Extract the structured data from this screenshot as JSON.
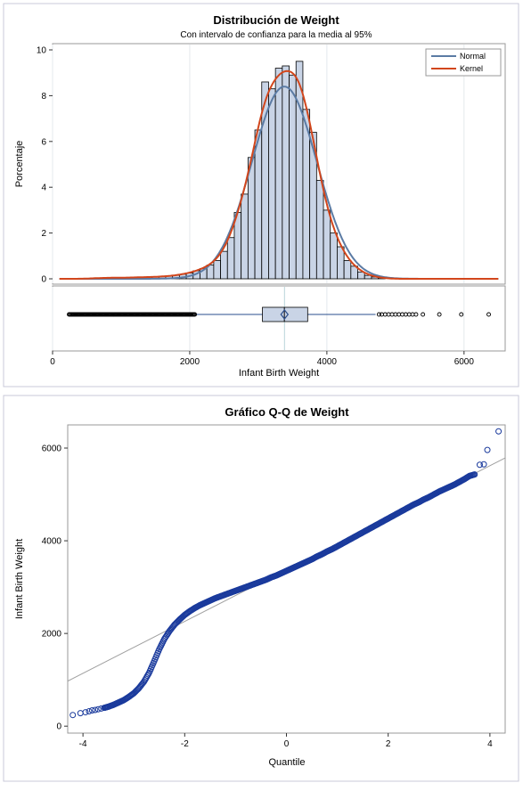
{
  "colors": {
    "bar_fill": "#c9d4e6",
    "bar_stroke": "#000000",
    "normal": "#5b7ba4",
    "kernel": "#d2461c",
    "box_fill": "#c9d4e6",
    "box_stroke": "#2a4d8c",
    "qq_marker": "#1a3a9c",
    "ref_line": "#a0a0a0"
  },
  "chart_data": [
    {
      "type": "histogram",
      "title": "Distribución de Weight",
      "subtitle": "Con intervalo de confianza para la media al 95%",
      "xlabel": "Infant Birth Weight",
      "ylabel": "Porcentaje",
      "xlim": [
        0,
        6600
      ],
      "ylim": [
        0,
        10
      ],
      "xticks": [
        0,
        2000,
        4000,
        6000
      ],
      "yticks": [
        0,
        2,
        4,
        6,
        8,
        10
      ],
      "bin_width": 100,
      "bins": [
        {
          "x": 600,
          "y": 0.03
        },
        {
          "x": 700,
          "y": 0.04
        },
        {
          "x": 800,
          "y": 0.04
        },
        {
          "x": 900,
          "y": 0.05
        },
        {
          "x": 1000,
          "y": 0.05
        },
        {
          "x": 1100,
          "y": 0.05
        },
        {
          "x": 1200,
          "y": 0.06
        },
        {
          "x": 1300,
          "y": 0.07
        },
        {
          "x": 1400,
          "y": 0.08
        },
        {
          "x": 1500,
          "y": 0.08
        },
        {
          "x": 1600,
          "y": 0.1
        },
        {
          "x": 1700,
          "y": 0.12
        },
        {
          "x": 1800,
          "y": 0.15
        },
        {
          "x": 1900,
          "y": 0.2
        },
        {
          "x": 2000,
          "y": 0.25
        },
        {
          "x": 2100,
          "y": 0.35
        },
        {
          "x": 2200,
          "y": 0.45
        },
        {
          "x": 2300,
          "y": 0.6
        },
        {
          "x": 2400,
          "y": 0.8
        },
        {
          "x": 2500,
          "y": 1.2
        },
        {
          "x": 2600,
          "y": 1.8
        },
        {
          "x": 2700,
          "y": 2.9
        },
        {
          "x": 2800,
          "y": 3.7
        },
        {
          "x": 2900,
          "y": 5.3
        },
        {
          "x": 3000,
          "y": 6.5
        },
        {
          "x": 3100,
          "y": 8.6
        },
        {
          "x": 3200,
          "y": 8.3
        },
        {
          "x": 3300,
          "y": 9.2
        },
        {
          "x": 3400,
          "y": 9.3
        },
        {
          "x": 3500,
          "y": 8.9
        },
        {
          "x": 3600,
          "y": 9.5
        },
        {
          "x": 3700,
          "y": 7.4
        },
        {
          "x": 3800,
          "y": 6.4
        },
        {
          "x": 3900,
          "y": 4.3
        },
        {
          "x": 4000,
          "y": 3.0
        },
        {
          "x": 4100,
          "y": 2.0
        },
        {
          "x": 4200,
          "y": 1.4
        },
        {
          "x": 4300,
          "y": 0.8
        },
        {
          "x": 4400,
          "y": 0.55
        },
        {
          "x": 4500,
          "y": 0.3
        },
        {
          "x": 4600,
          "y": 0.15
        },
        {
          "x": 4700,
          "y": 0.08
        },
        {
          "x": 4800,
          "y": 0.04
        }
      ],
      "series": [
        {
          "name": "Normal",
          "mean": 3380,
          "sd": 475
        },
        {
          "name": "Kernel"
        }
      ],
      "legend": "top-right",
      "boxplot": {
        "q1": 3060,
        "median": 3380,
        "q3": 3720,
        "mean": 3382,
        "whisker_low": 2080,
        "whisker_high": 4710,
        "outliers_low_range": [
          240,
          2080
        ],
        "outliers_high": [
          4760,
          4800,
          4850,
          4900,
          4950,
          5000,
          5050,
          5100,
          5150,
          5200,
          5250,
          5300,
          5400,
          5640,
          5960,
          6360
        ]
      }
    },
    {
      "type": "scatter",
      "title": "Gráfico Q-Q de Weight",
      "xlabel": "Quantile",
      "ylabel": "Infant Birth Weight",
      "xlim": [
        -4.3,
        4.3
      ],
      "ylim": [
        -150,
        6500
      ],
      "xticks": [
        -4,
        -2,
        0,
        2,
        4
      ],
      "yticks": [
        0,
        2000,
        4000,
        6000
      ],
      "reference_line": {
        "intercept": 3380,
        "slope": 560
      },
      "points": [
        [
          -4.2,
          240
        ],
        [
          -4.05,
          280
        ],
        [
          -3.95,
          300
        ],
        [
          -3.88,
          320
        ],
        [
          -3.82,
          340
        ],
        [
          -3.76,
          350
        ],
        [
          -3.7,
          365
        ],
        [
          -3.64,
          380
        ],
        [
          -3.58,
          395
        ],
        [
          -3.5,
          420
        ],
        [
          -3.4,
          460
        ],
        [
          -3.3,
          510
        ],
        [
          -3.2,
          560
        ],
        [
          -3.1,
          630
        ],
        [
          -3.0,
          710
        ],
        [
          -2.9,
          820
        ],
        [
          -2.8,
          960
        ],
        [
          -2.7,
          1150
        ],
        [
          -2.6,
          1400
        ],
        [
          -2.5,
          1660
        ],
        [
          -2.4,
          1880
        ],
        [
          -2.3,
          2050
        ],
        [
          -2.2,
          2190
        ],
        [
          -2.1,
          2300
        ],
        [
          -2.0,
          2400
        ],
        [
          -1.9,
          2480
        ],
        [
          -1.8,
          2550
        ],
        [
          -1.7,
          2610
        ],
        [
          -1.6,
          2660
        ],
        [
          -1.5,
          2710
        ],
        [
          -1.4,
          2760
        ],
        [
          -1.3,
          2800
        ],
        [
          -1.2,
          2840
        ],
        [
          -1.1,
          2880
        ],
        [
          -1.0,
          2920
        ],
        [
          -0.9,
          2960
        ],
        [
          -0.8,
          3000
        ],
        [
          -0.7,
          3040
        ],
        [
          -0.6,
          3080
        ],
        [
          -0.5,
          3120
        ],
        [
          -0.4,
          3160
        ],
        [
          -0.3,
          3210
        ],
        [
          -0.2,
          3250
        ],
        [
          -0.1,
          3300
        ],
        [
          0.0,
          3350
        ],
        [
          0.1,
          3400
        ],
        [
          0.2,
          3450
        ],
        [
          0.3,
          3500
        ],
        [
          0.4,
          3550
        ],
        [
          0.5,
          3600
        ],
        [
          0.6,
          3660
        ],
        [
          0.7,
          3710
        ],
        [
          0.8,
          3770
        ],
        [
          0.9,
          3820
        ],
        [
          1.0,
          3880
        ],
        [
          1.1,
          3940
        ],
        [
          1.2,
          4000
        ],
        [
          1.3,
          4060
        ],
        [
          1.4,
          4120
        ],
        [
          1.5,
          4180
        ],
        [
          1.6,
          4240
        ],
        [
          1.7,
          4300
        ],
        [
          1.8,
          4360
        ],
        [
          1.9,
          4420
        ],
        [
          2.0,
          4480
        ],
        [
          2.1,
          4540
        ],
        [
          2.2,
          4600
        ],
        [
          2.3,
          4660
        ],
        [
          2.4,
          4720
        ],
        [
          2.5,
          4780
        ],
        [
          2.6,
          4830
        ],
        [
          2.7,
          4890
        ],
        [
          2.8,
          4940
        ],
        [
          2.9,
          5000
        ],
        [
          3.0,
          5060
        ],
        [
          3.1,
          5110
        ],
        [
          3.2,
          5160
        ],
        [
          3.3,
          5210
        ],
        [
          3.4,
          5270
        ],
        [
          3.5,
          5330
        ],
        [
          3.6,
          5400
        ],
        [
          3.7,
          5430
        ],
        [
          3.8,
          5640
        ],
        [
          3.88,
          5650
        ],
        [
          3.95,
          5960
        ],
        [
          4.17,
          6360
        ]
      ]
    }
  ]
}
